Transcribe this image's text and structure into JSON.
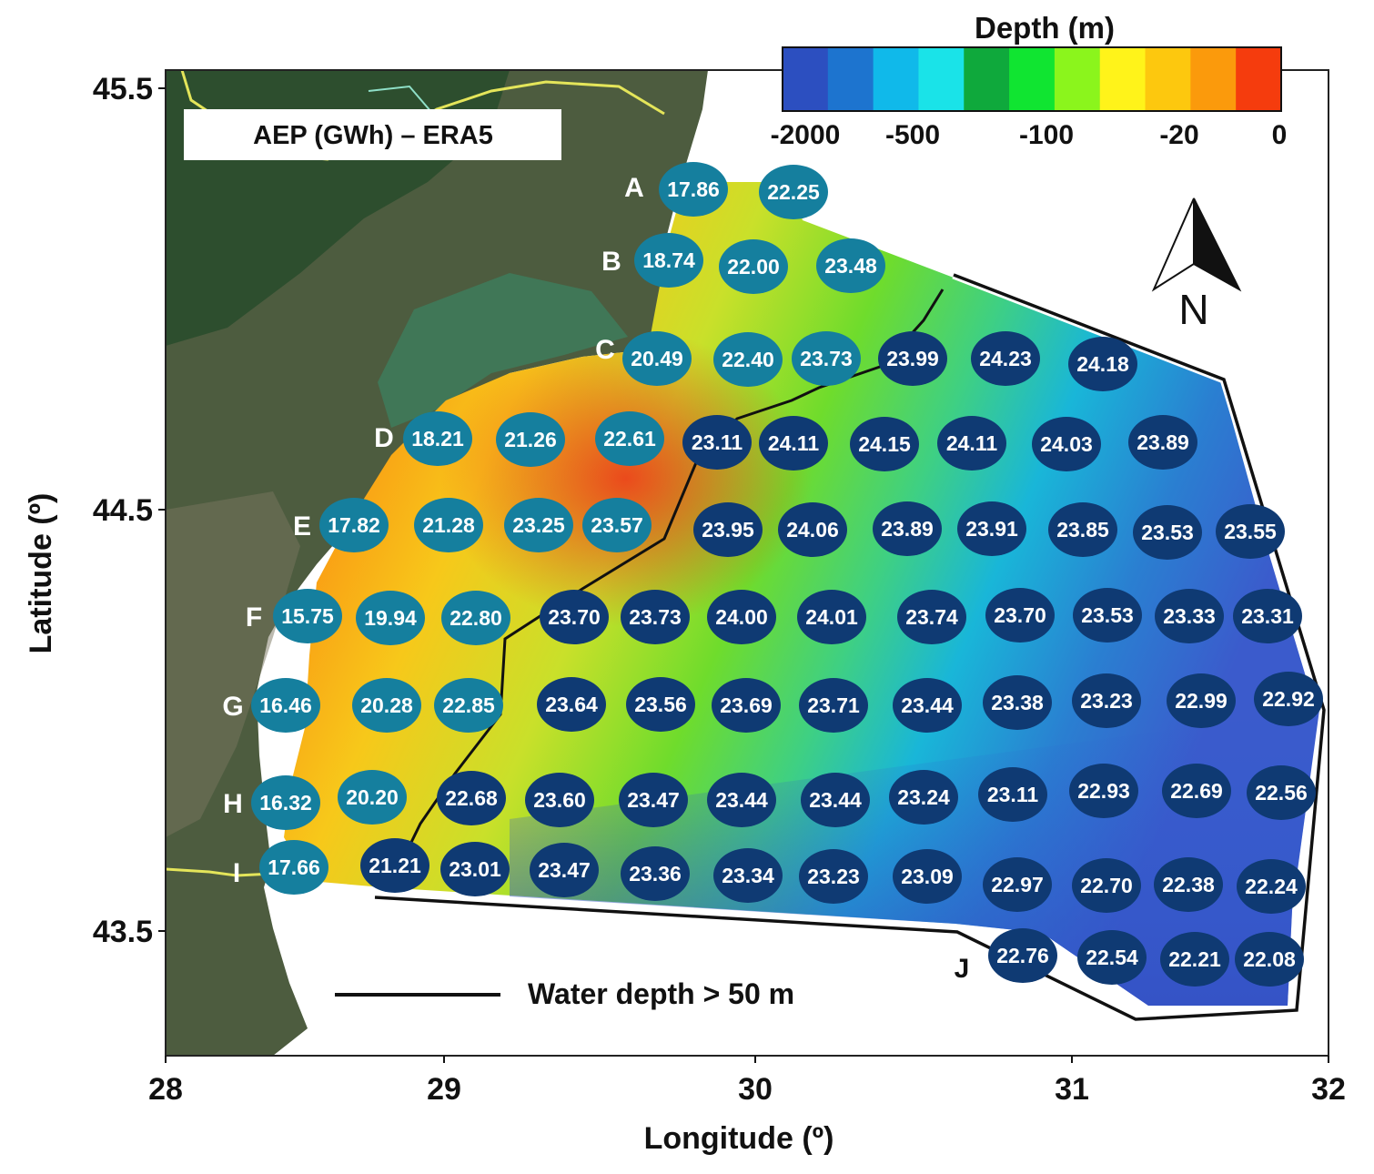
{
  "map": {
    "title": "AEP (GWh) – ERA5",
    "xlabel": "Longitude (º)",
    "ylabel": "Latitude (º)",
    "x_ticks": [
      "28",
      "29",
      "30",
      "31",
      "32"
    ],
    "y_ticks": [
      "45.5",
      "44.5",
      "43.5"
    ],
    "colorbar": {
      "title": "Depth (m)",
      "tick_labels": [
        "-2000",
        "-500",
        "-100",
        "-20",
        "0"
      ],
      "colors": [
        "#2c4fc0",
        "#1d74cf",
        "#10b9ea",
        "#1ae3e8",
        "#0fa93c",
        "#10e531",
        "#8bf51c",
        "#fff31a",
        "#fdc80e",
        "#fb9a0c",
        "#f53c0d"
      ]
    },
    "legend": {
      "line_label": "Water depth > 50 m"
    },
    "north_label": "N",
    "colors": {
      "marker_shallow": "#157f9e",
      "marker_deep": "#0f3a73",
      "land": "#4c5b3e",
      "boundary": "#111111"
    },
    "rows": [
      {
        "label": "A",
        "sites": [
          {
            "value": "17.86",
            "class": "shallow"
          },
          {
            "value": "22.25",
            "class": "shallow"
          }
        ]
      },
      {
        "label": "B",
        "sites": [
          {
            "value": "18.74",
            "class": "shallow"
          },
          {
            "value": "22.00",
            "class": "shallow"
          },
          {
            "value": "23.48",
            "class": "shallow"
          }
        ]
      },
      {
        "label": "C",
        "sites": [
          {
            "value": "20.49",
            "class": "shallow"
          },
          {
            "value": "22.40",
            "class": "shallow"
          },
          {
            "value": "23.73",
            "class": "shallow"
          },
          {
            "value": "23.99",
            "class": "deep"
          },
          {
            "value": "24.23",
            "class": "deep"
          },
          {
            "value": "24.18",
            "class": "deep"
          }
        ]
      },
      {
        "label": "D",
        "sites": [
          {
            "value": "18.21",
            "class": "shallow"
          },
          {
            "value": "21.26",
            "class": "shallow"
          },
          {
            "value": "22.61",
            "class": "shallow"
          },
          {
            "value": "23.11",
            "class": "deep"
          },
          {
            "value": "24.11",
            "class": "deep"
          },
          {
            "value": "24.15",
            "class": "deep"
          },
          {
            "value": "24.11",
            "class": "deep"
          },
          {
            "value": "24.03",
            "class": "deep"
          },
          {
            "value": "23.89",
            "class": "deep"
          }
        ]
      },
      {
        "label": "E",
        "sites": [
          {
            "value": "17.82",
            "class": "shallow"
          },
          {
            "value": "21.28",
            "class": "shallow"
          },
          {
            "value": "23.25",
            "class": "shallow"
          },
          {
            "value": "23.57",
            "class": "shallow"
          },
          {
            "value": "23.95",
            "class": "deep"
          },
          {
            "value": "24.06",
            "class": "deep"
          },
          {
            "value": "23.89",
            "class": "deep"
          },
          {
            "value": "23.91",
            "class": "deep"
          },
          {
            "value": "23.85",
            "class": "deep"
          },
          {
            "value": "23.53",
            "class": "deep"
          },
          {
            "value": "23.55",
            "class": "deep"
          }
        ]
      },
      {
        "label": "F",
        "sites": [
          {
            "value": "15.75",
            "class": "shallow"
          },
          {
            "value": "19.94",
            "class": "shallow"
          },
          {
            "value": "22.80",
            "class": "shallow"
          },
          {
            "value": "23.70",
            "class": "deep"
          },
          {
            "value": "23.73",
            "class": "deep"
          },
          {
            "value": "24.00",
            "class": "deep"
          },
          {
            "value": "24.01",
            "class": "deep"
          },
          {
            "value": "23.74",
            "class": "deep"
          },
          {
            "value": "23.70",
            "class": "deep"
          },
          {
            "value": "23.53",
            "class": "deep"
          },
          {
            "value": "23.33",
            "class": "deep"
          },
          {
            "value": "23.31",
            "class": "deep"
          }
        ]
      },
      {
        "label": "G",
        "sites": [
          {
            "value": "16.46",
            "class": "shallow"
          },
          {
            "value": "20.28",
            "class": "shallow"
          },
          {
            "value": "22.85",
            "class": "shallow"
          },
          {
            "value": "23.64",
            "class": "deep"
          },
          {
            "value": "23.56",
            "class": "deep"
          },
          {
            "value": "23.69",
            "class": "deep"
          },
          {
            "value": "23.71",
            "class": "deep"
          },
          {
            "value": "23.44",
            "class": "deep"
          },
          {
            "value": "23.38",
            "class": "deep"
          },
          {
            "value": "23.23",
            "class": "deep"
          },
          {
            "value": "22.99",
            "class": "deep"
          },
          {
            "value": "22.92",
            "class": "deep"
          }
        ]
      },
      {
        "label": "H",
        "sites": [
          {
            "value": "16.32",
            "class": "shallow"
          },
          {
            "value": "20.20",
            "class": "shallow"
          },
          {
            "value": "22.68",
            "class": "deep"
          },
          {
            "value": "23.60",
            "class": "deep"
          },
          {
            "value": "23.47",
            "class": "deep"
          },
          {
            "value": "23.44",
            "class": "deep"
          },
          {
            "value": "23.44",
            "class": "deep"
          },
          {
            "value": "23.24",
            "class": "deep"
          },
          {
            "value": "23.11",
            "class": "deep"
          },
          {
            "value": "22.93",
            "class": "deep"
          },
          {
            "value": "22.69",
            "class": "deep"
          },
          {
            "value": "22.56",
            "class": "deep"
          }
        ]
      },
      {
        "label": "I",
        "sites": [
          {
            "value": "17.66",
            "class": "shallow"
          },
          {
            "value": "21.21",
            "class": "deep"
          },
          {
            "value": "23.01",
            "class": "deep"
          },
          {
            "value": "23.47",
            "class": "deep"
          },
          {
            "value": "23.36",
            "class": "deep"
          },
          {
            "value": "23.34",
            "class": "deep"
          },
          {
            "value": "23.23",
            "class": "deep"
          },
          {
            "value": "23.09",
            "class": "deep"
          },
          {
            "value": "22.97",
            "class": "deep"
          },
          {
            "value": "22.70",
            "class": "deep"
          },
          {
            "value": "22.38",
            "class": "deep"
          },
          {
            "value": "22.24",
            "class": "deep"
          }
        ]
      },
      {
        "label": "J",
        "sites": [
          {
            "value": "22.76",
            "class": "deep"
          },
          {
            "value": "22.54",
            "class": "deep"
          },
          {
            "value": "22.21",
            "class": "deep"
          },
          {
            "value": "22.08",
            "class": "deep"
          }
        ]
      }
    ]
  }
}
